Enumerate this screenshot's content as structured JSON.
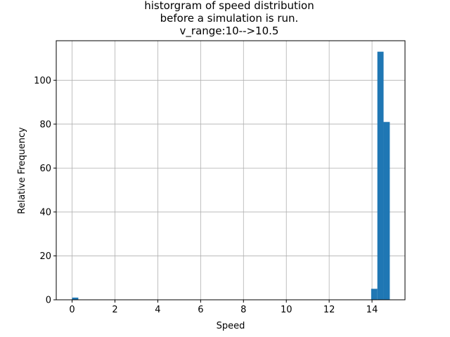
{
  "chart_data": {
    "type": "bar",
    "title_lines": [
      "historgram of speed distribution",
      "before a simulation is run.",
      "v_range:10-->10.5"
    ],
    "xlabel": "Speed",
    "ylabel": "Relative Frequency",
    "xlim": [
      -0.74,
      15.54
    ],
    "ylim": [
      0,
      118
    ],
    "xticks": [
      0,
      2,
      4,
      6,
      8,
      10,
      12,
      14
    ],
    "yticks": [
      0,
      20,
      40,
      60,
      80,
      100
    ],
    "grid": true,
    "bar_color": "#1f77b4",
    "bins": [
      {
        "x0": 0.0,
        "x1": 0.29,
        "value": 1
      },
      {
        "x0": 13.96,
        "x1": 14.25,
        "value": 5
      },
      {
        "x0": 14.25,
        "x1": 14.54,
        "value": 113
      },
      {
        "x0": 14.54,
        "x1": 14.83,
        "value": 81
      }
    ]
  }
}
